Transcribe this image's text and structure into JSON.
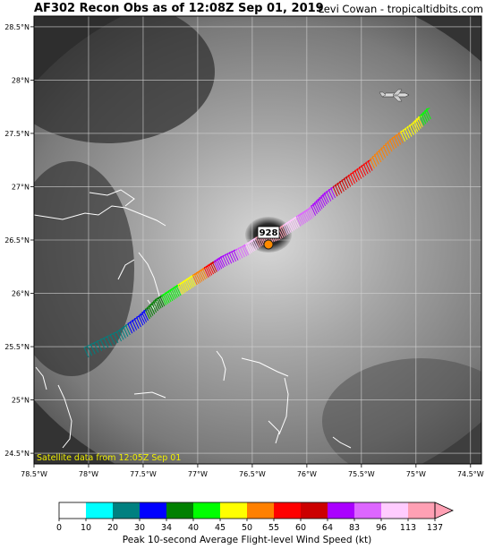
{
  "header": {
    "title": "AF302 Recon Obs as of 12:08Z Sep 01, 2019",
    "credit": "Levi Cowan - tropicaltidbits.com"
  },
  "map": {
    "lon_range": [
      -78.5,
      -74.4
    ],
    "lat_range": [
      24.4,
      28.6
    ],
    "lon_ticks": [
      -78.5,
      -78.0,
      -77.5,
      -77.0,
      -76.5,
      -76.0,
      -75.5,
      -75.0,
      -74.5
    ],
    "lon_tick_labels": [
      "78.5°W",
      "78°W",
      "77.5°W",
      "77°W",
      "76.5°W",
      "76°W",
      "75.5°W",
      "75°W",
      "74.5°W"
    ],
    "lat_ticks": [
      24.5,
      25.0,
      25.5,
      26.0,
      26.5,
      27.0,
      27.5,
      28.0,
      28.5
    ],
    "lat_tick_labels": [
      "24.5°N",
      "25°N",
      "25.5°N",
      "26°N",
      "26.5°N",
      "27°N",
      "27.5°N",
      "28°N",
      "28.5°N"
    ],
    "satellite_note": "Satellite data from 12:05Z Sep 01",
    "pressure_label": "928",
    "storm_center": {
      "lon": -76.3,
      "lat": 26.45
    },
    "aircraft_position": {
      "lon": -75.05,
      "lat": 27.8
    },
    "flight_track": [
      {
        "lon": -78.0,
        "lat": 25.4,
        "kt": 25
      },
      {
        "lon": -77.7,
        "lat": 25.55,
        "kt": 28
      },
      {
        "lon": -77.5,
        "lat": 25.7,
        "kt": 32
      },
      {
        "lon": -77.35,
        "lat": 25.85,
        "kt": 38
      },
      {
        "lon": -77.2,
        "lat": 25.95,
        "kt": 43
      },
      {
        "lon": -77.05,
        "lat": 26.05,
        "kt": 48
      },
      {
        "lon": -76.9,
        "lat": 26.15,
        "kt": 55
      },
      {
        "lon": -76.75,
        "lat": 26.25,
        "kt": 70
      },
      {
        "lon": -76.55,
        "lat": 26.35,
        "kt": 90
      },
      {
        "lon": -76.4,
        "lat": 26.45,
        "kt": 120
      },
      {
        "lon": -76.25,
        "lat": 26.5,
        "kt": 125
      },
      {
        "lon": -76.1,
        "lat": 26.6,
        "kt": 100
      },
      {
        "lon": -75.95,
        "lat": 26.7,
        "kt": 85
      },
      {
        "lon": -75.8,
        "lat": 26.85,
        "kt": 66
      },
      {
        "lon": -75.6,
        "lat": 27.0,
        "kt": 60
      },
      {
        "lon": -75.4,
        "lat": 27.15,
        "kt": 55
      },
      {
        "lon": -75.2,
        "lat": 27.35,
        "kt": 52
      },
      {
        "lon": -75.0,
        "lat": 27.5,
        "kt": 47
      },
      {
        "lon": -74.85,
        "lat": 27.65,
        "kt": 42
      }
    ]
  },
  "colorbar": {
    "boundaries": [
      0,
      10,
      20,
      30,
      34,
      40,
      45,
      50,
      55,
      60,
      64,
      83,
      96,
      113,
      137
    ],
    "tick_labels": [
      "0",
      "10",
      "20",
      "30",
      "34",
      "40",
      "45",
      "50",
      "55",
      "60",
      "64",
      "83",
      "96",
      "113",
      "137"
    ],
    "colors": [
      "#ffffff",
      "#00ffff",
      "#008080",
      "#0000ff",
      "#008000",
      "#00ff00",
      "#ffff00",
      "#ff8000",
      "#ff0000",
      "#cc0000",
      "#aa00ff",
      "#dd66ff",
      "#ffccff",
      "#ffa0b4"
    ],
    "label": "Peak 10-second Average Flight-level Wind Speed (kt)"
  }
}
